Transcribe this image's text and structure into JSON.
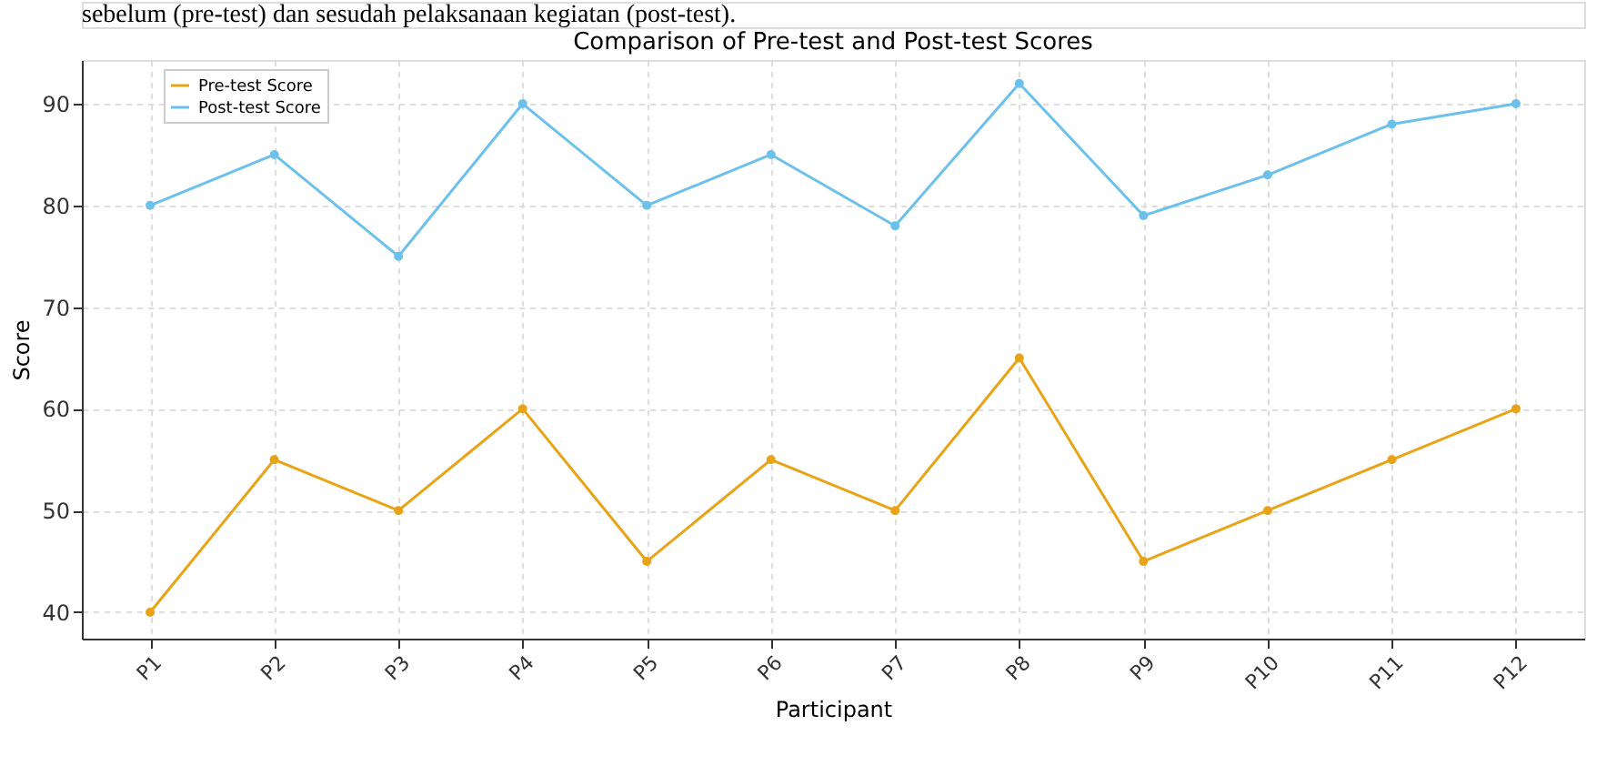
{
  "chart_data": {
    "type": "line",
    "title": "Comparison of Pre-test and Post-test Scores",
    "xlabel": "Participant",
    "ylabel": "Score",
    "annotations": [
      "sebelum (pre-test) dan sesudah pelaksanaan kegiatan (post-test)."
    ],
    "categories": [
      "P1",
      "P2",
      "P3",
      "P4",
      "P5",
      "P6",
      "P7",
      "P8",
      "P9",
      "P10",
      "P11",
      "P12"
    ],
    "series": [
      {
        "name": "Pre-test Score",
        "color": "#e8a317",
        "values": [
          40,
          55,
          50,
          60,
          45,
          55,
          50,
          65,
          45,
          50,
          55,
          60
        ]
      },
      {
        "name": "Post-test Score",
        "color": "#6cc0ec",
        "values": [
          80,
          85,
          75,
          90,
          80,
          85,
          78,
          92,
          79,
          83,
          88,
          90
        ]
      }
    ],
    "ylim": [
      37.4,
      94.3
    ],
    "yticks": [
      40,
      50,
      60,
      70,
      80,
      90
    ],
    "grid": true,
    "legend": "top left",
    "marker": "circle",
    "line_style": "solid"
  }
}
